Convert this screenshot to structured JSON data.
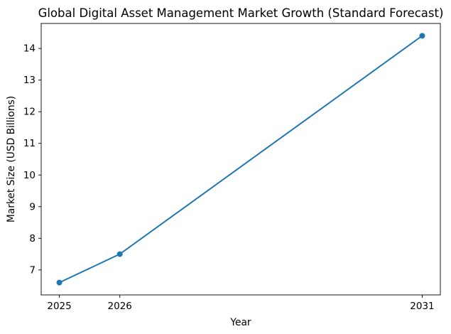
{
  "chart_data": {
    "type": "line",
    "title": "Global Digital Asset Management Market Growth (Standard Forecast)",
    "xlabel": "Year",
    "ylabel": "Market Size (USD Billions)",
    "x": [
      2025,
      2026,
      2031
    ],
    "values": [
      6.6,
      7.5,
      14.4
    ],
    "xticks": [
      2025,
      2026,
      2031
    ],
    "yticks": [
      7,
      8,
      9,
      10,
      11,
      12,
      13,
      14
    ],
    "xlim": [
      2024.7,
      2031.3
    ],
    "ylim": [
      6.21,
      14.79
    ],
    "line_color": "#1f77b4",
    "marker": "circle",
    "grid": false,
    "legend_position": "none",
    "background_color": "#ffffff",
    "axes_edge_color": "#000000"
  }
}
